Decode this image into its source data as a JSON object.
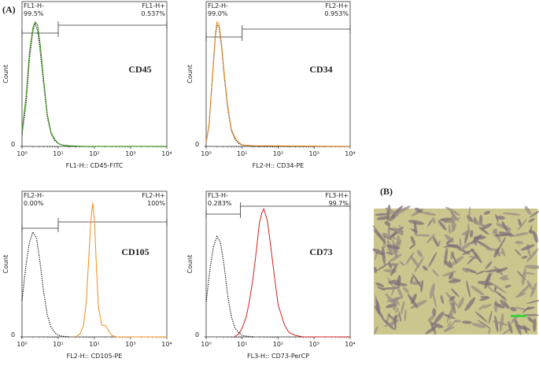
{
  "figure": {
    "label_a": "(A)",
    "label_b": "(B)"
  },
  "chart_data": [
    {
      "type": "line",
      "xlog": true,
      "marker": "CD45",
      "x_label": "FL1-H:: CD45-FITC",
      "y_label": "Count",
      "xlim": [
        1,
        10000
      ],
      "xticks": [
        {
          "value": 1,
          "label": "10⁰"
        },
        {
          "value": 10,
          "label": "10¹"
        },
        {
          "value": 100,
          "label": "10²"
        },
        {
          "value": 1000,
          "label": "10³"
        },
        {
          "value": 10000,
          "label": "10⁴"
        }
      ],
      "ylim": [
        0,
        100
      ],
      "yticks": [
        0
      ],
      "gates": [
        {
          "name": "FL1-H-",
          "percent": "99.5%",
          "xrange": [
            1,
            10
          ]
        },
        {
          "name": "FL1-H+",
          "percent": "0.537%",
          "xrange": [
            10,
            10000
          ]
        }
      ],
      "series": [
        {
          "color": "#000000",
          "style": "dotted",
          "x": [
            1,
            1.3,
            1.6,
            2,
            2.3,
            2.7,
            3.2,
            4,
            5,
            6.3,
            8,
            10,
            13,
            20,
            50,
            10000
          ],
          "values": [
            8,
            30,
            60,
            80,
            85,
            80,
            65,
            42,
            20,
            9,
            4,
            2,
            1,
            0,
            0,
            0
          ]
        },
        {
          "color": "#3a9a1a",
          "style": "solid",
          "x": [
            1,
            1.3,
            1.6,
            2,
            2.3,
            2.7,
            3.2,
            4,
            5,
            6.3,
            8,
            10,
            13,
            20,
            50,
            10000
          ],
          "values": [
            10,
            35,
            65,
            82,
            86,
            84,
            70,
            45,
            22,
            10,
            5,
            2,
            1,
            0.5,
            0,
            0
          ]
        }
      ]
    },
    {
      "type": "line",
      "xlog": true,
      "marker": "CD34",
      "x_label": "FL2-H:: CD34-PE",
      "y_label": "Count",
      "xlim": [
        1,
        10000
      ],
      "xticks": [
        {
          "value": 1,
          "label": "10⁰"
        },
        {
          "value": 10,
          "label": "10¹"
        },
        {
          "value": 100,
          "label": "10²"
        },
        {
          "value": 1000,
          "label": "10³"
        },
        {
          "value": 10000,
          "label": "10⁴"
        }
      ],
      "ylim": [
        0,
        100
      ],
      "yticks": [
        0
      ],
      "gates": [
        {
          "name": "FL2-H-",
          "percent": "99.0%",
          "xrange": [
            1,
            10
          ]
        },
        {
          "name": "FL2-H+",
          "percent": "0.953%",
          "xrange": [
            10,
            10000
          ]
        }
      ],
      "series": [
        {
          "color": "#000000",
          "style": "dotted",
          "x": [
            1,
            1.2,
            1.5,
            1.8,
            2,
            2.3,
            2.7,
            3.2,
            4,
            5,
            6.3,
            8,
            10,
            20,
            10000
          ],
          "values": [
            3,
            14,
            48,
            76,
            84,
            82,
            68,
            48,
            26,
            11,
            5,
            2,
            1,
            0,
            0
          ]
        },
        {
          "color": "#f08c1e",
          "style": "solid",
          "x": [
            1,
            1.2,
            1.5,
            1.8,
            2,
            2.3,
            2.7,
            3.2,
            4,
            5,
            6.3,
            8,
            10,
            20,
            10000
          ],
          "values": [
            3,
            15,
            50,
            78,
            86,
            84,
            70,
            50,
            28,
            12,
            6,
            3,
            1,
            0.5,
            0
          ]
        }
      ]
    },
    {
      "type": "line",
      "xlog": true,
      "marker": "CD105",
      "x_label": "FL2-H:: CD105-PE",
      "y_label": "Count",
      "xlim": [
        1,
        10000
      ],
      "xticks": [
        {
          "value": 1,
          "label": "10⁰"
        },
        {
          "value": 10,
          "label": "10¹"
        },
        {
          "value": 100,
          "label": "10²"
        },
        {
          "value": 1000,
          "label": "10³"
        },
        {
          "value": 10000,
          "label": "10⁴"
        }
      ],
      "ylim": [
        0,
        100
      ],
      "yticks": [
        0
      ],
      "gates": [
        {
          "name": "FL2-H-",
          "percent": "0.00%",
          "xrange": [
            1,
            10
          ]
        },
        {
          "name": "FL2-H+",
          "percent": "100%",
          "xrange": [
            10,
            10000
          ]
        }
      ],
      "series": [
        {
          "color": "#000000",
          "style": "dotted",
          "x": [
            1,
            1.3,
            1.6,
            2,
            2.5,
            3.2,
            4,
            5,
            6.3,
            8,
            10,
            13,
            20
          ],
          "values": [
            25,
            50,
            65,
            72,
            68,
            50,
            30,
            15,
            7,
            3,
            1,
            0.5,
            0
          ]
        },
        {
          "color": "#f08c1e",
          "style": "solid",
          "x": [
            30,
            40,
            50,
            60,
            70,
            80,
            90,
            100,
            115,
            130,
            160,
            200,
            250,
            300,
            400,
            600,
            10000
          ],
          "values": [
            0,
            2,
            8,
            25,
            55,
            80,
            92,
            80,
            45,
            20,
            8,
            8,
            4,
            1,
            0,
            0,
            0
          ]
        }
      ]
    },
    {
      "type": "line",
      "xlog": true,
      "marker": "CD73",
      "x_label": "FL3-H:: CD73-PerCP",
      "y_label": "Count",
      "xlim": [
        1,
        10000
      ],
      "xticks": [
        {
          "value": 1,
          "label": "10⁰"
        },
        {
          "value": 10,
          "label": "10¹"
        },
        {
          "value": 100,
          "label": "10²"
        },
        {
          "value": 1000,
          "label": "10³"
        },
        {
          "value": 10000,
          "label": "10⁴"
        }
      ],
      "ylim": [
        0,
        100
      ],
      "yticks": [
        0
      ],
      "gates": [
        {
          "name": "FL3-H-",
          "percent": "0.283%",
          "xrange": [
            1,
            9
          ]
        },
        {
          "name": "FL3-H+",
          "percent": "99.7%",
          "xrange": [
            9,
            10000
          ]
        }
      ],
      "series": [
        {
          "color": "#000000",
          "style": "dotted",
          "x": [
            1,
            1.3,
            1.6,
            2,
            2.5,
            3.2,
            4,
            5,
            6.3,
            8,
            10,
            13,
            20
          ],
          "values": [
            24,
            48,
            62,
            69,
            65,
            48,
            28,
            14,
            6,
            3,
            1,
            0.5,
            0
          ]
        },
        {
          "color": "#d42020",
          "style": "solid",
          "x": [
            6,
            8,
            10,
            13,
            16,
            20,
            25,
            30,
            35,
            40,
            50,
            60,
            80,
            100,
            150,
            200,
            300,
            500,
            10000
          ],
          "values": [
            0,
            2,
            6,
            14,
            25,
            40,
            60,
            78,
            85,
            88,
            80,
            65,
            40,
            22,
            8,
            3,
            1,
            0,
            0
          ]
        }
      ]
    }
  ]
}
